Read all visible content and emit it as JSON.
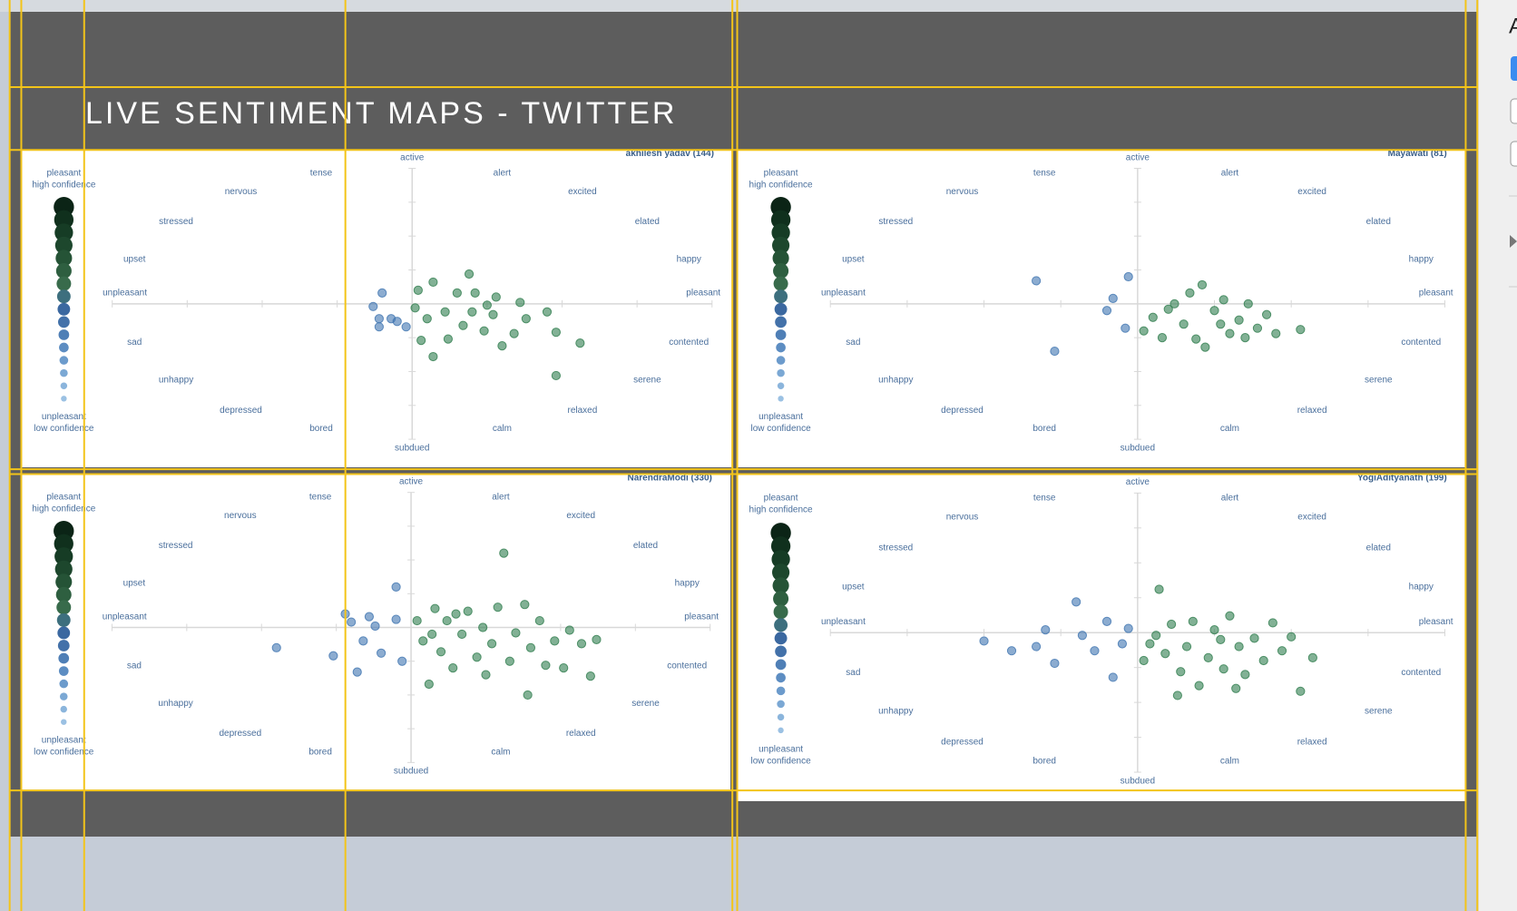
{
  "header": {
    "title": "LIVE SENTIMENT MAPS - TWITTER"
  },
  "sidebar": {
    "label": "A"
  },
  "legend": {
    "top": [
      "pleasant",
      "high confidence"
    ],
    "bottom": [
      "unpleasant",
      "low confidence"
    ]
  },
  "emotions": [
    "active",
    "alert",
    "excited",
    "elated",
    "happy",
    "pleasant",
    "contented",
    "serene",
    "relaxed",
    "calm",
    "subdued",
    "bored",
    "depressed",
    "unhappy",
    "sad",
    "unpleasant",
    "upset",
    "stressed",
    "nervous",
    "tense"
  ],
  "maps": [
    {
      "title": "akhilesh yadav (144)",
      "points": [
        [
          -0.1,
          0.08
        ],
        [
          -0.13,
          -0.02
        ],
        [
          -0.11,
          -0.11
        ],
        [
          -0.07,
          -0.11
        ],
        [
          -0.05,
          -0.13
        ],
        [
          -0.11,
          -0.17
        ],
        [
          -0.02,
          -0.17
        ],
        [
          0.03,
          -0.27
        ],
        [
          0.01,
          -0.03
        ],
        [
          0.02,
          0.1
        ],
        [
          0.07,
          0.16
        ],
        [
          0.15,
          0.08
        ],
        [
          0.19,
          0.22
        ],
        [
          0.21,
          0.08
        ],
        [
          0.28,
          0.05
        ],
        [
          0.36,
          0.01
        ],
        [
          0.45,
          -0.06
        ],
        [
          0.48,
          -0.21
        ],
        [
          0.56,
          -0.29
        ],
        [
          0.48,
          -0.53
        ],
        [
          0.07,
          -0.39
        ],
        [
          0.11,
          -0.06
        ],
        [
          0.17,
          -0.16
        ],
        [
          0.24,
          -0.2
        ],
        [
          0.3,
          -0.31
        ],
        [
          0.38,
          -0.11
        ],
        [
          0.12,
          -0.26
        ],
        [
          0.27,
          -0.08
        ],
        [
          0.34,
          -0.22
        ],
        [
          0.05,
          -0.11
        ],
        [
          0.2,
          -0.06
        ],
        [
          0.25,
          -0.01
        ]
      ]
    },
    {
      "title": "Mayawati  (81)",
      "points": [
        [
          -0.33,
          0.17
        ],
        [
          -0.27,
          -0.35
        ],
        [
          -0.03,
          0.2
        ],
        [
          -0.08,
          0.04
        ],
        [
          -0.1,
          -0.05
        ],
        [
          -0.04,
          -0.18
        ],
        [
          0.02,
          -0.2
        ],
        [
          0.05,
          -0.1
        ],
        [
          0.08,
          -0.25
        ],
        [
          0.12,
          0.0
        ],
        [
          0.15,
          -0.15
        ],
        [
          0.17,
          0.08
        ],
        [
          0.21,
          0.14
        ],
        [
          0.22,
          -0.32
        ],
        [
          0.25,
          -0.05
        ],
        [
          0.28,
          0.03
        ],
        [
          0.3,
          -0.22
        ],
        [
          0.33,
          -0.12
        ],
        [
          0.36,
          0.0
        ],
        [
          0.39,
          -0.18
        ],
        [
          0.42,
          -0.08
        ],
        [
          0.45,
          -0.22
        ],
        [
          0.53,
          -0.19
        ],
        [
          0.19,
          -0.26
        ],
        [
          0.1,
          -0.04
        ],
        [
          0.27,
          -0.15
        ],
        [
          0.35,
          -0.25
        ]
      ]
    },
    {
      "title": "NarendraModi (330)",
      "points": [
        [
          -0.45,
          -0.15
        ],
        [
          -0.26,
          -0.21
        ],
        [
          -0.22,
          0.1
        ],
        [
          -0.2,
          0.04
        ],
        [
          -0.18,
          -0.33
        ],
        [
          -0.16,
          -0.1
        ],
        [
          -0.14,
          0.08
        ],
        [
          -0.12,
          0.01
        ],
        [
          -0.1,
          -0.19
        ],
        [
          -0.05,
          0.3
        ],
        [
          -0.05,
          0.06
        ],
        [
          -0.03,
          -0.25
        ],
        [
          0.02,
          0.05
        ],
        [
          0.04,
          -0.1
        ],
        [
          0.06,
          -0.42
        ],
        [
          0.08,
          0.14
        ],
        [
          0.1,
          -0.18
        ],
        [
          0.12,
          0.05
        ],
        [
          0.14,
          -0.3
        ],
        [
          0.17,
          -0.05
        ],
        [
          0.19,
          0.12
        ],
        [
          0.22,
          -0.22
        ],
        [
          0.24,
          0.0
        ],
        [
          0.27,
          -0.12
        ],
        [
          0.29,
          0.15
        ],
        [
          0.31,
          0.55
        ],
        [
          0.33,
          -0.25
        ],
        [
          0.35,
          -0.04
        ],
        [
          0.38,
          0.17
        ],
        [
          0.4,
          -0.15
        ],
        [
          0.43,
          0.05
        ],
        [
          0.45,
          -0.28
        ],
        [
          0.48,
          -0.1
        ],
        [
          0.51,
          -0.3
        ],
        [
          0.53,
          -0.02
        ],
        [
          0.57,
          -0.12
        ],
        [
          0.6,
          -0.36
        ],
        [
          0.62,
          -0.09
        ],
        [
          0.39,
          -0.5
        ],
        [
          0.15,
          0.1
        ],
        [
          0.25,
          -0.35
        ],
        [
          0.07,
          -0.05
        ]
      ]
    },
    {
      "title": "YogiAdityanath (199)",
      "points": [
        [
          -0.5,
          -0.06
        ],
        [
          -0.41,
          -0.13
        ],
        [
          -0.33,
          -0.1
        ],
        [
          -0.3,
          0.02
        ],
        [
          -0.27,
          -0.22
        ],
        [
          -0.2,
          0.22
        ],
        [
          -0.18,
          -0.02
        ],
        [
          -0.14,
          -0.13
        ],
        [
          -0.1,
          0.08
        ],
        [
          -0.08,
          -0.32
        ],
        [
          -0.05,
          -0.08
        ],
        [
          -0.03,
          0.03
        ],
        [
          0.02,
          -0.2
        ],
        [
          0.04,
          -0.08
        ],
        [
          0.07,
          0.31
        ],
        [
          0.09,
          -0.15
        ],
        [
          0.11,
          0.06
        ],
        [
          0.14,
          -0.28
        ],
        [
          0.16,
          -0.1
        ],
        [
          0.18,
          0.08
        ],
        [
          0.2,
          -0.38
        ],
        [
          0.23,
          -0.18
        ],
        [
          0.25,
          0.02
        ],
        [
          0.28,
          -0.26
        ],
        [
          0.3,
          0.12
        ],
        [
          0.33,
          -0.1
        ],
        [
          0.35,
          -0.3
        ],
        [
          0.38,
          -0.04
        ],
        [
          0.41,
          -0.2
        ],
        [
          0.44,
          0.07
        ],
        [
          0.47,
          -0.13
        ],
        [
          0.5,
          -0.03
        ],
        [
          0.53,
          -0.42
        ],
        [
          0.57,
          -0.18
        ],
        [
          0.13,
          -0.45
        ],
        [
          0.27,
          -0.05
        ],
        [
          0.06,
          -0.02
        ],
        [
          0.32,
          -0.4
        ]
      ]
    }
  ]
}
